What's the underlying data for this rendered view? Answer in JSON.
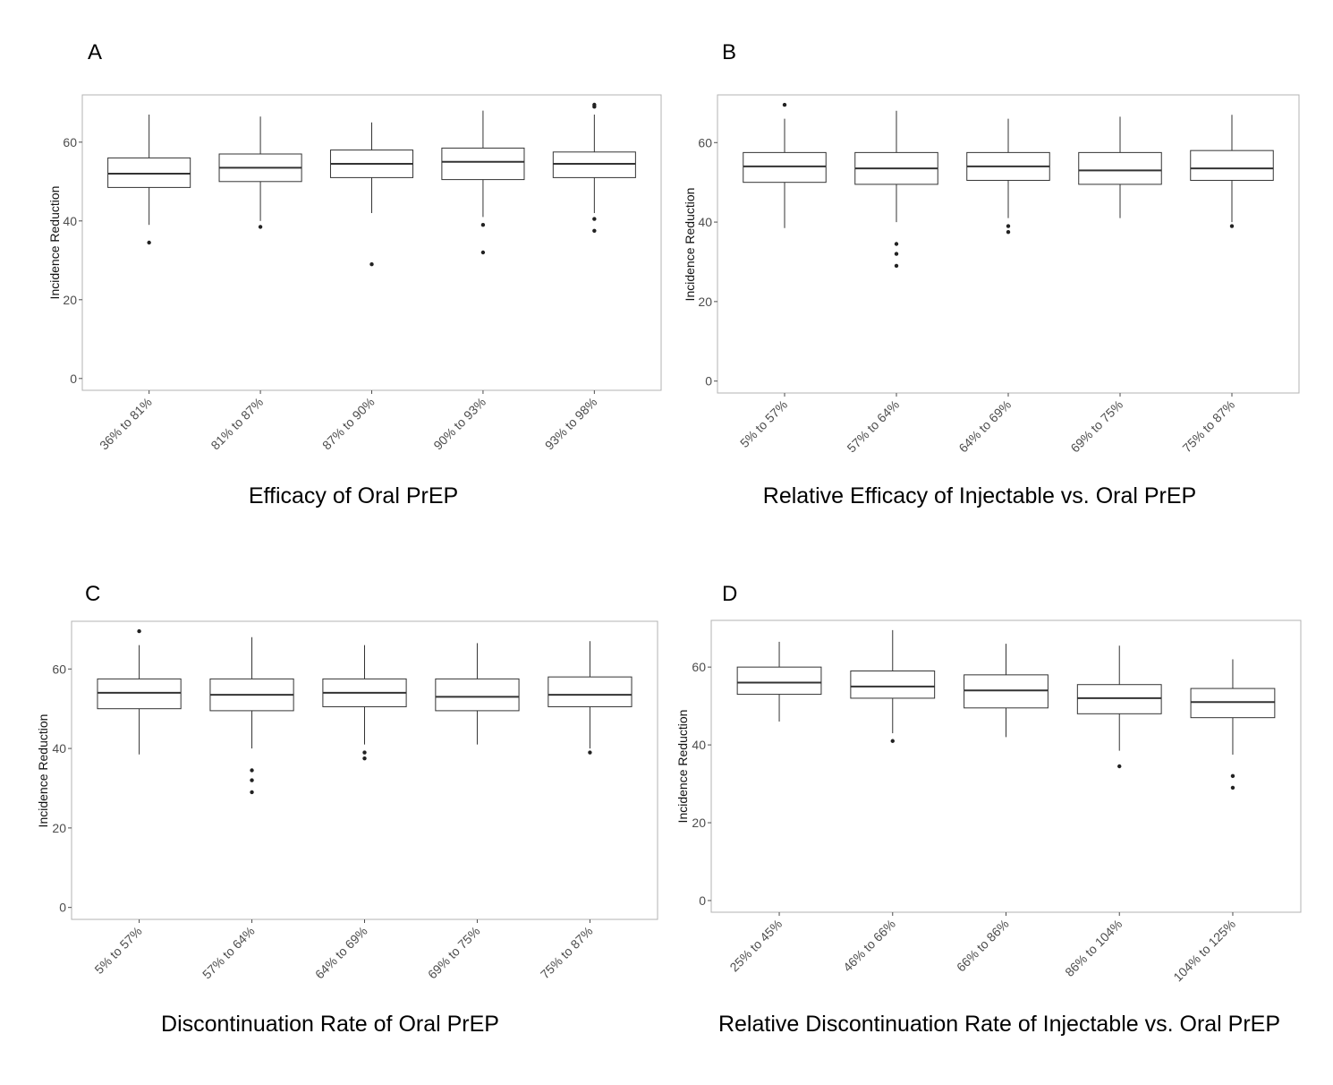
{
  "chart_data": [
    {
      "panel": "A",
      "type": "box",
      "caption": "Efficacy of Oral PrEP",
      "ylabel": "Incidence Reduction",
      "ylim": [
        -3,
        72
      ],
      "yticks": [
        0,
        20,
        40,
        60
      ],
      "grid": false,
      "categories": [
        "36% to 81%",
        "81% to 87%",
        "87% to 90%",
        "90% to 93%",
        "93% to 98%"
      ],
      "boxes": [
        {
          "whisker_low": 39,
          "q1": 48.5,
          "median": 52,
          "q3": 56,
          "whisker_high": 67,
          "outliers": [
            34.5
          ]
        },
        {
          "whisker_low": 40,
          "q1": 50,
          "median": 53.5,
          "q3": 57,
          "whisker_high": 66.5,
          "outliers": [
            38.5
          ]
        },
        {
          "whisker_low": 42,
          "q1": 51,
          "median": 54.5,
          "q3": 58,
          "whisker_high": 65,
          "outliers": [
            29
          ]
        },
        {
          "whisker_low": 41,
          "q1": 50.5,
          "median": 55,
          "q3": 58.5,
          "whisker_high": 68,
          "outliers": [
            39,
            32
          ]
        },
        {
          "whisker_low": 42,
          "q1": 51,
          "median": 54.5,
          "q3": 57.5,
          "whisker_high": 67,
          "outliers": [
            69.5,
            69,
            40.5,
            37.5
          ]
        }
      ]
    },
    {
      "panel": "B",
      "type": "box",
      "caption": "Relative Efficacy of Injectable vs. Oral PrEP",
      "ylabel": "Incidence Reduction",
      "ylim": [
        -3,
        72
      ],
      "yticks": [
        0,
        20,
        40,
        60
      ],
      "grid": false,
      "categories": [
        "5% to 57%",
        "57% to 64%",
        "64% to 69%",
        "69% to 75%",
        "75% to 87%"
      ],
      "boxes": [
        {
          "whisker_low": 38.5,
          "q1": 50,
          "median": 54,
          "q3": 57.5,
          "whisker_high": 66,
          "outliers": [
            69.5
          ]
        },
        {
          "whisker_low": 40,
          "q1": 49.5,
          "median": 53.5,
          "q3": 57.5,
          "whisker_high": 68,
          "outliers": [
            34.5,
            32,
            29
          ]
        },
        {
          "whisker_low": 41,
          "q1": 50.5,
          "median": 54,
          "q3": 57.5,
          "whisker_high": 66,
          "outliers": [
            39,
            37.5
          ]
        },
        {
          "whisker_low": 41,
          "q1": 49.5,
          "median": 53,
          "q3": 57.5,
          "whisker_high": 66.5,
          "outliers": []
        },
        {
          "whisker_low": 40,
          "q1": 50.5,
          "median": 53.5,
          "q3": 58,
          "whisker_high": 67,
          "outliers": [
            39
          ]
        }
      ]
    },
    {
      "panel": "C",
      "type": "box",
      "caption": "Discontinuation Rate of Oral PrEP",
      "ylabel": "Incidence Reduction",
      "ylim": [
        -3,
        72
      ],
      "yticks": [
        0,
        20,
        40,
        60
      ],
      "grid": false,
      "categories": [
        "5% to 57%",
        "57% to 64%",
        "64% to 69%",
        "69% to 75%",
        "75% to 87%"
      ],
      "boxes": [
        {
          "whisker_low": 38.5,
          "q1": 50,
          "median": 54,
          "q3": 57.5,
          "whisker_high": 66,
          "outliers": [
            69.5
          ]
        },
        {
          "whisker_low": 40,
          "q1": 49.5,
          "median": 53.5,
          "q3": 57.5,
          "whisker_high": 68,
          "outliers": [
            34.5,
            32,
            29
          ]
        },
        {
          "whisker_low": 41,
          "q1": 50.5,
          "median": 54,
          "q3": 57.5,
          "whisker_high": 66,
          "outliers": [
            39,
            37.5
          ]
        },
        {
          "whisker_low": 41,
          "q1": 49.5,
          "median": 53,
          "q3": 57.5,
          "whisker_high": 66.5,
          "outliers": []
        },
        {
          "whisker_low": 40,
          "q1": 50.5,
          "median": 53.5,
          "q3": 58,
          "whisker_high": 67,
          "outliers": [
            39
          ]
        }
      ]
    },
    {
      "panel": "D",
      "type": "box",
      "caption": "Relative Discontinuation Rate of Injectable vs. Oral PrEP",
      "ylabel": "Incidence Reduction",
      "ylim": [
        -3,
        72
      ],
      "yticks": [
        0,
        20,
        40,
        60
      ],
      "grid": false,
      "categories": [
        "25% to 45%",
        "46% to 66%",
        "66% to 86%",
        "86% to 104%",
        "104% to 125%"
      ],
      "boxes": [
        {
          "whisker_low": 46,
          "q1": 53,
          "median": 56,
          "q3": 60,
          "whisker_high": 66.5,
          "outliers": []
        },
        {
          "whisker_low": 43,
          "q1": 52,
          "median": 55,
          "q3": 59,
          "whisker_high": 69.5,
          "outliers": [
            41
          ]
        },
        {
          "whisker_low": 42,
          "q1": 49.5,
          "median": 54,
          "q3": 58,
          "whisker_high": 66,
          "outliers": []
        },
        {
          "whisker_low": 38.5,
          "q1": 48,
          "median": 52,
          "q3": 55.5,
          "whisker_high": 65.5,
          "outliers": [
            34.5
          ]
        },
        {
          "whisker_low": 37.5,
          "q1": 47,
          "median": 51,
          "q3": 54.5,
          "whisker_high": 62,
          "outliers": [
            32,
            29
          ]
        }
      ]
    }
  ]
}
